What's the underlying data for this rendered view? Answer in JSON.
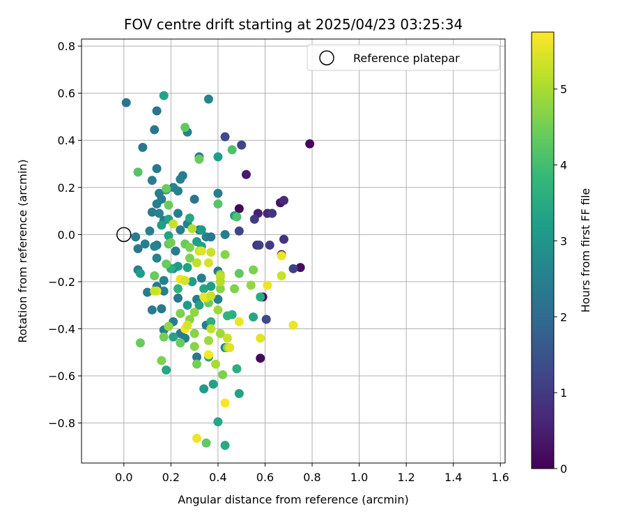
{
  "chart_data": {
    "type": "scatter",
    "title": "FOV centre drift starting at 2025/04/23 03:25:34",
    "xlabel": "Angular distance from reference (arcmin)",
    "ylabel": "Rotation from reference (arcmin)",
    "xlim": [
      -0.18,
      1.62
    ],
    "ylim": [
      -0.97,
      0.83
    ],
    "xticks": [
      0.0,
      0.2,
      0.4,
      0.6,
      0.8,
      1.0,
      1.2,
      1.4,
      1.6
    ],
    "xtick_labels": [
      "0.0",
      "0.2",
      "0.4",
      "0.6",
      "0.8",
      "1.0",
      "1.2",
      "1.4",
      "1.6"
    ],
    "yticks": [
      -0.8,
      -0.6,
      -0.4,
      -0.2,
      0.0,
      0.2,
      0.4,
      0.6,
      0.8
    ],
    "ytick_labels": [
      "−0.8",
      "−0.6",
      "−0.4",
      "−0.2",
      "0.0",
      "0.2",
      "0.4",
      "0.6",
      "0.8"
    ],
    "grid": true,
    "legend": {
      "position": "top-right",
      "entries": [
        "Reference platepar"
      ]
    },
    "reference_point": {
      "name": "Reference platepar",
      "x": 0.0,
      "y": 0.0
    },
    "colorbar": {
      "label": "Hours from first FF file",
      "colormap": "viridis",
      "range": [
        0,
        5.75
      ],
      "ticks": [
        0,
        1,
        2,
        3,
        4,
        5
      ],
      "tick_labels": [
        "0",
        "1",
        "2",
        "3",
        "4",
        "5"
      ],
      "stops": [
        "#440154",
        "#482878",
        "#3e4989",
        "#31688e",
        "#26828e",
        "#1f9e89",
        "#35b779",
        "#6ece58",
        "#b5de2b",
        "#fde725"
      ]
    },
    "series": [
      {
        "color_by": "hours",
        "points": [
          {
            "x": 0.79,
            "y": 0.385,
            "h": 0.1
          },
          {
            "x": 0.75,
            "y": -0.14,
            "h": 0.2
          },
          {
            "x": 0.49,
            "y": 0.11,
            "h": 0.1
          },
          {
            "x": 0.58,
            "y": -0.525,
            "h": 0.1
          },
          {
            "x": 0.59,
            "y": -0.265,
            "h": 0.1
          },
          {
            "x": 0.665,
            "y": 0.135,
            "h": 0.3
          },
          {
            "x": 0.67,
            "y": -0.085,
            "h": 0.3
          },
          {
            "x": 0.57,
            "y": 0.09,
            "h": 0.5
          },
          {
            "x": 0.61,
            "y": 0.09,
            "h": 0.6
          },
          {
            "x": 0.52,
            "y": 0.255,
            "h": 0.4
          },
          {
            "x": 0.68,
            "y": 0.145,
            "h": 0.7
          },
          {
            "x": 0.565,
            "y": -0.045,
            "h": 0.8
          },
          {
            "x": 0.63,
            "y": 0.09,
            "h": 0.9
          },
          {
            "x": 0.62,
            "y": -0.045,
            "h": 1.0
          },
          {
            "x": 0.68,
            "y": -0.02,
            "h": 0.9
          },
          {
            "x": 0.555,
            "y": 0.065,
            "h": 1.0
          },
          {
            "x": 0.72,
            "y": -0.145,
            "h": 1.1
          },
          {
            "x": 0.49,
            "y": 0.015,
            "h": 1.2
          },
          {
            "x": 0.5,
            "y": 0.38,
            "h": 1.2
          },
          {
            "x": 0.43,
            "y": 0.415,
            "h": 1.3
          },
          {
            "x": 0.605,
            "y": -0.36,
            "h": 1.3
          },
          {
            "x": 0.575,
            "y": -0.045,
            "h": 1.1
          },
          {
            "x": 0.01,
            "y": 0.56,
            "h": 2.2
          },
          {
            "x": 0.14,
            "y": 0.525,
            "h": 2.2
          },
          {
            "x": 0.13,
            "y": 0.445,
            "h": 2.3
          },
          {
            "x": 0.08,
            "y": 0.37,
            "h": 2.3
          },
          {
            "x": 0.14,
            "y": 0.28,
            "h": 2.3
          },
          {
            "x": 0.12,
            "y": 0.23,
            "h": 2.4
          },
          {
            "x": 0.25,
            "y": 0.25,
            "h": 2.4
          },
          {
            "x": 0.24,
            "y": 0.235,
            "h": 2.5
          },
          {
            "x": 0.21,
            "y": 0.2,
            "h": 2.6
          },
          {
            "x": 0.3,
            "y": 0.15,
            "h": 2.2
          },
          {
            "x": 0.4,
            "y": 0.175,
            "h": 2.4
          },
          {
            "x": 0.15,
            "y": 0.175,
            "h": 2.5
          },
          {
            "x": 0.18,
            "y": 0.19,
            "h": 2.6
          },
          {
            "x": 0.23,
            "y": 0.185,
            "h": 2.5
          },
          {
            "x": 0.16,
            "y": 0.15,
            "h": 2.4
          },
          {
            "x": 0.14,
            "y": 0.13,
            "h": 2.5
          },
          {
            "x": 0.12,
            "y": 0.095,
            "h": 2.4
          },
          {
            "x": 0.15,
            "y": 0.09,
            "h": 2.6
          },
          {
            "x": 0.17,
            "y": 0.06,
            "h": 2.3
          },
          {
            "x": 0.23,
            "y": 0.09,
            "h": 2.4
          },
          {
            "x": 0.27,
            "y": 0.045,
            "h": 2.5
          },
          {
            "x": 0.32,
            "y": 0.02,
            "h": 2.3
          },
          {
            "x": 0.24,
            "y": 0.02,
            "h": 2.4
          },
          {
            "x": 0.11,
            "y": 0.015,
            "h": 2.5
          },
          {
            "x": 0.05,
            "y": -0.01,
            "h": 2.4
          },
          {
            "x": 0.06,
            "y": -0.06,
            "h": 2.3
          },
          {
            "x": 0.09,
            "y": -0.04,
            "h": 2.5
          },
          {
            "x": 0.14,
            "y": -0.045,
            "h": 2.4
          },
          {
            "x": 0.13,
            "y": -0.05,
            "h": 2.6
          },
          {
            "x": 0.22,
            "y": -0.07,
            "h": 2.4
          },
          {
            "x": 0.35,
            "y": -0.01,
            "h": 2.5
          },
          {
            "x": 0.37,
            "y": -0.01,
            "h": 2.3
          },
          {
            "x": 0.43,
            "y": 0.0,
            "h": 2.4
          },
          {
            "x": 0.14,
            "y": -0.1,
            "h": 2.5
          },
          {
            "x": 0.06,
            "y": -0.15,
            "h": 2.5
          },
          {
            "x": 0.21,
            "y": -0.145,
            "h": 2.4
          },
          {
            "x": 0.4,
            "y": -0.155,
            "h": 2.3
          },
          {
            "x": 0.33,
            "y": -0.185,
            "h": 2.4
          },
          {
            "x": 0.17,
            "y": -0.195,
            "h": 2.5
          },
          {
            "x": 0.14,
            "y": -0.22,
            "h": 2.3
          },
          {
            "x": 0.1,
            "y": -0.245,
            "h": 2.4
          },
          {
            "x": 0.17,
            "y": -0.24,
            "h": 2.5
          },
          {
            "x": 0.29,
            "y": -0.2,
            "h": 2.4
          },
          {
            "x": 0.23,
            "y": -0.27,
            "h": 2.3
          },
          {
            "x": 0.31,
            "y": -0.275,
            "h": 2.4
          },
          {
            "x": 0.4,
            "y": -0.275,
            "h": 2.5
          },
          {
            "x": 0.12,
            "y": -0.32,
            "h": 2.4
          },
          {
            "x": 0.16,
            "y": -0.315,
            "h": 2.3
          },
          {
            "x": 0.21,
            "y": -0.37,
            "h": 2.4
          },
          {
            "x": 0.17,
            "y": -0.405,
            "h": 2.5
          },
          {
            "x": 0.24,
            "y": -0.42,
            "h": 2.4
          },
          {
            "x": 0.26,
            "y": -0.44,
            "h": 2.4
          },
          {
            "x": 0.31,
            "y": -0.52,
            "h": 2.3
          },
          {
            "x": 0.35,
            "y": -0.385,
            "h": 2.4
          },
          {
            "x": 0.43,
            "y": -0.48,
            "h": 2.5
          },
          {
            "x": 0.32,
            "y": 0.33,
            "h": 2.4
          },
          {
            "x": 0.27,
            "y": 0.435,
            "h": 2.5
          },
          {
            "x": 0.36,
            "y": 0.575,
            "h": 2.6
          },
          {
            "x": 0.17,
            "y": 0.59,
            "h": 3.3
          },
          {
            "x": 0.4,
            "y": 0.33,
            "h": 3.2
          },
          {
            "x": 0.47,
            "y": 0.08,
            "h": 3.2
          },
          {
            "x": 0.28,
            "y": 0.07,
            "h": 3.4
          },
          {
            "x": 0.19,
            "y": 0.065,
            "h": 3.3
          },
          {
            "x": 0.33,
            "y": 0.02,
            "h": 3.1
          },
          {
            "x": 0.16,
            "y": 0.04,
            "h": 3.2
          },
          {
            "x": 0.19,
            "y": -0.005,
            "h": 3.3
          },
          {
            "x": 0.07,
            "y": -0.165,
            "h": 3.2
          },
          {
            "x": 0.23,
            "y": -0.135,
            "h": 3.1
          },
          {
            "x": 0.27,
            "y": -0.14,
            "h": 3.3
          },
          {
            "x": 0.31,
            "y": -0.03,
            "h": 3.2
          },
          {
            "x": 0.33,
            "y": -0.05,
            "h": 3.3
          },
          {
            "x": 0.29,
            "y": -0.2,
            "h": 3.2
          },
          {
            "x": 0.34,
            "y": -0.23,
            "h": 3.4
          },
          {
            "x": 0.37,
            "y": -0.22,
            "h": 3.2
          },
          {
            "x": 0.27,
            "y": -0.3,
            "h": 3.1
          },
          {
            "x": 0.32,
            "y": -0.3,
            "h": 3.3
          },
          {
            "x": 0.21,
            "y": -0.435,
            "h": 3.3
          },
          {
            "x": 0.18,
            "y": -0.575,
            "h": 3.4
          },
          {
            "x": 0.34,
            "y": -0.655,
            "h": 3.2
          },
          {
            "x": 0.38,
            "y": -0.635,
            "h": 3.3
          },
          {
            "x": 0.4,
            "y": -0.795,
            "h": 3.4
          },
          {
            "x": 0.43,
            "y": -0.895,
            "h": 3.5
          },
          {
            "x": 0.49,
            "y": -0.675,
            "h": 3.3
          },
          {
            "x": 0.48,
            "y": -0.57,
            "h": 3.6
          },
          {
            "x": 0.58,
            "y": -0.265,
            "h": 3.5
          },
          {
            "x": 0.46,
            "y": -0.34,
            "h": 3.6
          },
          {
            "x": 0.55,
            "y": -0.35,
            "h": 3.4
          },
          {
            "x": 0.44,
            "y": -0.345,
            "h": 3.7
          },
          {
            "x": 0.37,
            "y": -0.37,
            "h": 3.6
          },
          {
            "x": 0.36,
            "y": -0.52,
            "h": 3.5
          },
          {
            "x": 0.23,
            "y": -0.23,
            "h": 3.7
          },
          {
            "x": 0.2,
            "y": -0.145,
            "h": 3.6
          },
          {
            "x": 0.26,
            "y": 0.455,
            "h": 4.3
          },
          {
            "x": 0.32,
            "y": 0.32,
            "h": 4.4
          },
          {
            "x": 0.46,
            "y": 0.36,
            "h": 4.1
          },
          {
            "x": 0.06,
            "y": 0.265,
            "h": 4.2
          },
          {
            "x": 0.18,
            "y": 0.195,
            "h": 4.4
          },
          {
            "x": 0.19,
            "y": 0.125,
            "h": 4.4
          },
          {
            "x": 0.4,
            "y": 0.13,
            "h": 4.2
          },
          {
            "x": 0.48,
            "y": 0.075,
            "h": 4.1
          },
          {
            "x": 0.19,
            "y": -0.04,
            "h": 4.3
          },
          {
            "x": 0.2,
            "y": -0.035,
            "h": 4.5
          },
          {
            "x": 0.26,
            "y": -0.04,
            "h": 4.4
          },
          {
            "x": 0.18,
            "y": -0.125,
            "h": 4.4
          },
          {
            "x": 0.28,
            "y": -0.055,
            "h": 4.6
          },
          {
            "x": 0.13,
            "y": -0.175,
            "h": 4.4
          },
          {
            "x": 0.28,
            "y": -0.1,
            "h": 4.6
          },
          {
            "x": 0.43,
            "y": -0.085,
            "h": 4.7
          },
          {
            "x": 0.55,
            "y": -0.15,
            "h": 4.6
          },
          {
            "x": 0.49,
            "y": -0.165,
            "h": 4.3
          },
          {
            "x": 0.47,
            "y": -0.23,
            "h": 4.6
          },
          {
            "x": 0.54,
            "y": -0.215,
            "h": 4.8
          },
          {
            "x": 0.41,
            "y": -0.23,
            "h": 4.7
          },
          {
            "x": 0.36,
            "y": -0.29,
            "h": 4.4
          },
          {
            "x": 0.4,
            "y": -0.32,
            "h": 4.9
          },
          {
            "x": 0.3,
            "y": -0.33,
            "h": 4.8
          },
          {
            "x": 0.24,
            "y": -0.335,
            "h": 4.6
          },
          {
            "x": 0.28,
            "y": -0.36,
            "h": 4.7
          },
          {
            "x": 0.19,
            "y": -0.39,
            "h": 4.8
          },
          {
            "x": 0.41,
            "y": -0.42,
            "h": 4.9
          },
          {
            "x": 0.3,
            "y": -0.42,
            "h": 4.7
          },
          {
            "x": 0.24,
            "y": -0.46,
            "h": 4.4
          },
          {
            "x": 0.17,
            "y": -0.435,
            "h": 4.5
          },
          {
            "x": 0.07,
            "y": -0.46,
            "h": 4.4
          },
          {
            "x": 0.16,
            "y": -0.535,
            "h": 4.6
          },
          {
            "x": 0.31,
            "y": -0.55,
            "h": 4.5
          },
          {
            "x": 0.3,
            "y": -0.475,
            "h": 4.7
          },
          {
            "x": 0.36,
            "y": -0.45,
            "h": 4.9
          },
          {
            "x": 0.44,
            "y": -0.48,
            "h": 4.8
          },
          {
            "x": 0.42,
            "y": -0.595,
            "h": 4.6
          },
          {
            "x": 0.35,
            "y": -0.885,
            "h": 4.3
          },
          {
            "x": 0.41,
            "y": -0.17,
            "h": 4.9
          },
          {
            "x": 0.39,
            "y": -0.55,
            "h": 5.0
          },
          {
            "x": 0.35,
            "y": -0.27,
            "h": 5.2
          },
          {
            "x": 0.37,
            "y": -0.075,
            "h": 5.3
          },
          {
            "x": 0.31,
            "y": -0.12,
            "h": 5.2
          },
          {
            "x": 0.29,
            "y": 0.025,
            "h": 5.1
          },
          {
            "x": 0.21,
            "y": 0.045,
            "h": 5.3
          },
          {
            "x": 0.36,
            "y": -0.12,
            "h": 5.4
          },
          {
            "x": 0.32,
            "y": -0.07,
            "h": 5.3
          },
          {
            "x": 0.41,
            "y": -0.18,
            "h": 5.2
          },
          {
            "x": 0.41,
            "y": -0.2,
            "h": 5.1
          },
          {
            "x": 0.61,
            "y": -0.215,
            "h": 5.6
          },
          {
            "x": 0.67,
            "y": -0.175,
            "h": 5.3
          },
          {
            "x": 0.67,
            "y": -0.09,
            "h": 5.6
          },
          {
            "x": 0.14,
            "y": -0.24,
            "h": 5.5
          },
          {
            "x": 0.24,
            "y": -0.19,
            "h": 5.6
          },
          {
            "x": 0.26,
            "y": -0.195,
            "h": 5.4
          },
          {
            "x": 0.13,
            "y": -0.24,
            "h": 5.3
          },
          {
            "x": 0.34,
            "y": -0.265,
            "h": 5.6
          },
          {
            "x": 0.37,
            "y": -0.26,
            "h": 5.3
          },
          {
            "x": 0.26,
            "y": -0.4,
            "h": 5.7
          },
          {
            "x": 0.27,
            "y": -0.385,
            "h": 5.4
          },
          {
            "x": 0.37,
            "y": -0.4,
            "h": 5.2
          },
          {
            "x": 0.44,
            "y": -0.44,
            "h": 5.3
          },
          {
            "x": 0.49,
            "y": -0.37,
            "h": 5.6
          },
          {
            "x": 0.58,
            "y": -0.44,
            "h": 5.5
          },
          {
            "x": 0.72,
            "y": -0.385,
            "h": 5.6
          },
          {
            "x": 0.36,
            "y": -0.51,
            "h": 5.7
          },
          {
            "x": 0.45,
            "y": -0.48,
            "h": 5.5
          },
          {
            "x": 0.43,
            "y": -0.715,
            "h": 5.7
          },
          {
            "x": 0.31,
            "y": -0.865,
            "h": 5.6
          },
          {
            "x": 0.33,
            "y": -0.07,
            "h": 5.5
          }
        ]
      }
    ]
  }
}
